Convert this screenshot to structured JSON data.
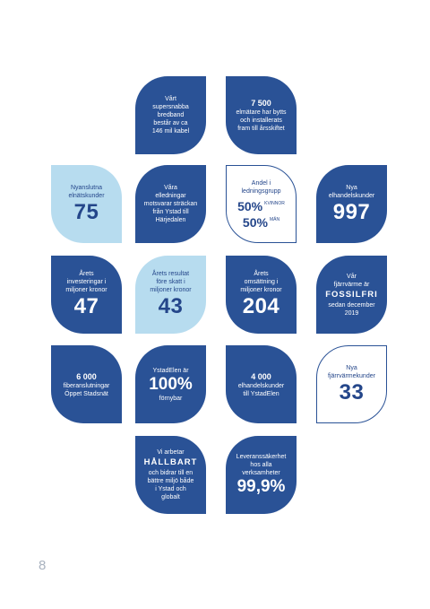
{
  "tiles": {
    "broadband": {
      "lines": [
        "Vårt",
        "supersnabba",
        "bredband",
        "består av ca",
        "146 mil kabel"
      ]
    },
    "meters": {
      "number": "7 500",
      "lines": [
        "elmätare har bytts",
        "och installerats",
        "fram till årsskiftet"
      ]
    },
    "new_grid": {
      "lines": [
        "Nyanslutna",
        "elnätskunder"
      ],
      "number": "75"
    },
    "lines_span": {
      "lines": [
        "Våra",
        "elledningar",
        "motsvarar sträckan",
        "från Ystad till",
        "Härjedalen"
      ]
    },
    "gender": {
      "lines": [
        "Andel i",
        "ledningsgrupp"
      ],
      "women_pct": "50%",
      "women_label": "KVINNOR",
      "men_pct": "50%",
      "men_label": "MÄN"
    },
    "new_elhandel": {
      "lines": [
        "Nya",
        "elhandelskunder"
      ],
      "number": "997"
    },
    "investments": {
      "lines": [
        "Årets",
        "investeringar i",
        "miljoner kronor"
      ],
      "number": "47"
    },
    "result": {
      "lines": [
        "Årets resultat",
        "före skatt i",
        "miljoner kronor"
      ],
      "number": "43"
    },
    "turnover": {
      "lines": [
        "Årets",
        "omsättning i",
        "miljoner kronor"
      ],
      "number": "204"
    },
    "district_heat": {
      "lines_top": [
        "Vår",
        "fjärrvärme är"
      ],
      "emphasis": "FOSSILFRI",
      "lines_bottom": [
        "sedan december",
        "2019"
      ]
    },
    "fiber": {
      "number": "6 000",
      "lines": [
        "fiberanslutningar",
        "Öppet Stadsnät"
      ]
    },
    "renewable": {
      "lines_top": [
        "YstadElen är"
      ],
      "number": "100%",
      "lines_bottom": [
        "förnybar"
      ]
    },
    "ystadelen": {
      "number": "4 000",
      "lines": [
        "elhandelskunder",
        "till YstadElen"
      ]
    },
    "new_heat": {
      "lines": [
        "Nya",
        "fjärrvärmekunder"
      ],
      "number": "33"
    },
    "sustainable": {
      "lines_top": [
        "Vi arbetar"
      ],
      "emphasis": "HÅLLBART",
      "lines_bottom": [
        "och bidrar till en",
        "bättre miljö både",
        "i Ystad och",
        "globalt"
      ]
    },
    "reliability": {
      "lines": [
        "Leveranssäkerhet",
        "hos alla",
        "verksamheter"
      ],
      "number": "99,9%"
    }
  },
  "page_number": "8",
  "colors": {
    "dark": "#2a5296",
    "light": "#b7dcef",
    "outline_text": "#24468a"
  }
}
